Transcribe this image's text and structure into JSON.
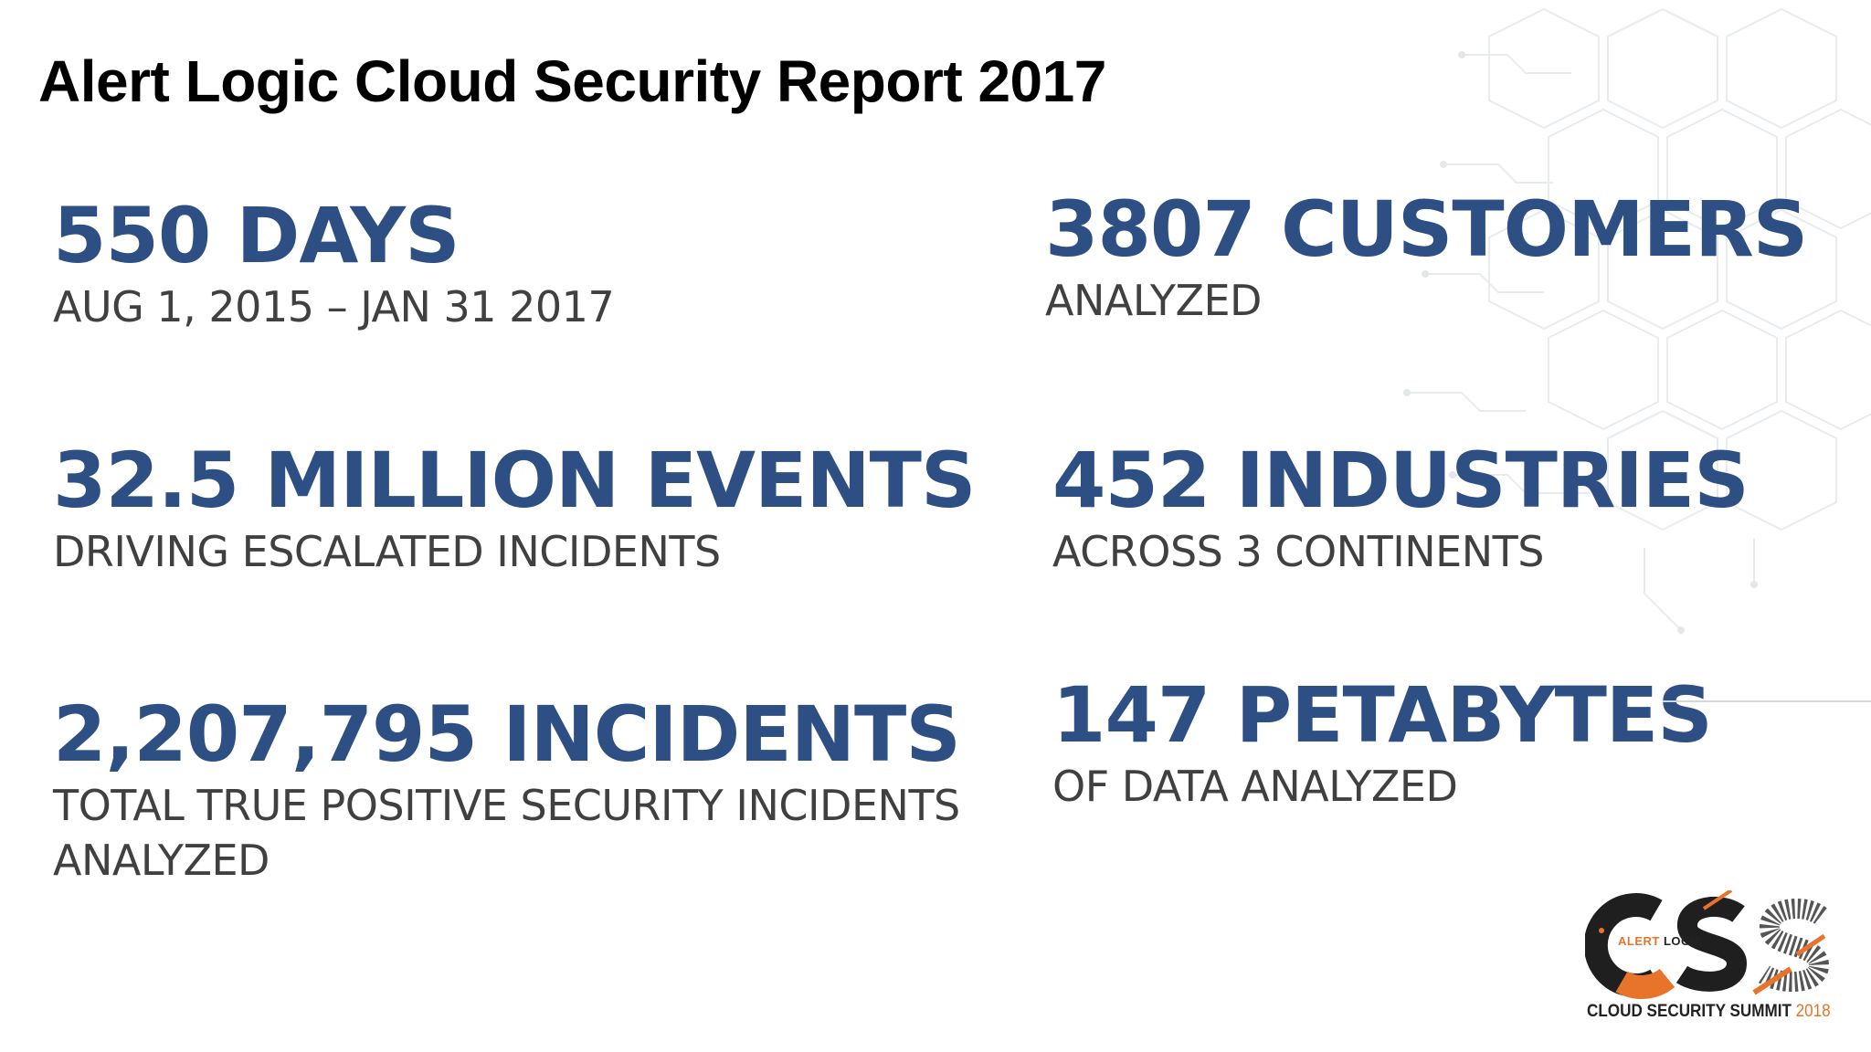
{
  "title": "Alert Logic Cloud Security Report 2017",
  "stats": {
    "days": {
      "headline": "550 DAYS",
      "sub": "AUG 1, 2015 – JAN 31 2017"
    },
    "customers": {
      "headline": "3807 CUSTOMERS",
      "sub": "ANALYZED"
    },
    "events": {
      "headline": "32.5 MILLION EVENTS",
      "sub": "DRIVING ESCALATED INCIDENTS"
    },
    "industries": {
      "headline": "452 INDUSTRIES",
      "sub": "ACROSS 3 CONTINENTS"
    },
    "incidents": {
      "headline": "2,207,795 INCIDENTS",
      "sub_line1": "TOTAL TRUE POSITIVE SECURITY INCIDENTS",
      "sub_line2": "ANALYZED"
    },
    "petabytes": {
      "headline": "147 PETABYTES",
      "sub": "OF DATA ANALYZED"
    }
  },
  "logo": {
    "brand_orange": "ALERT",
    "brand_dark": "LOGIC",
    "tagline": "CLOUD SECURITY SUMMIT",
    "year": "2018",
    "icon": "css-summit-logo"
  },
  "colors": {
    "headline": "#2d4f83",
    "subtext": "#404040",
    "accent": "#e8742c"
  }
}
